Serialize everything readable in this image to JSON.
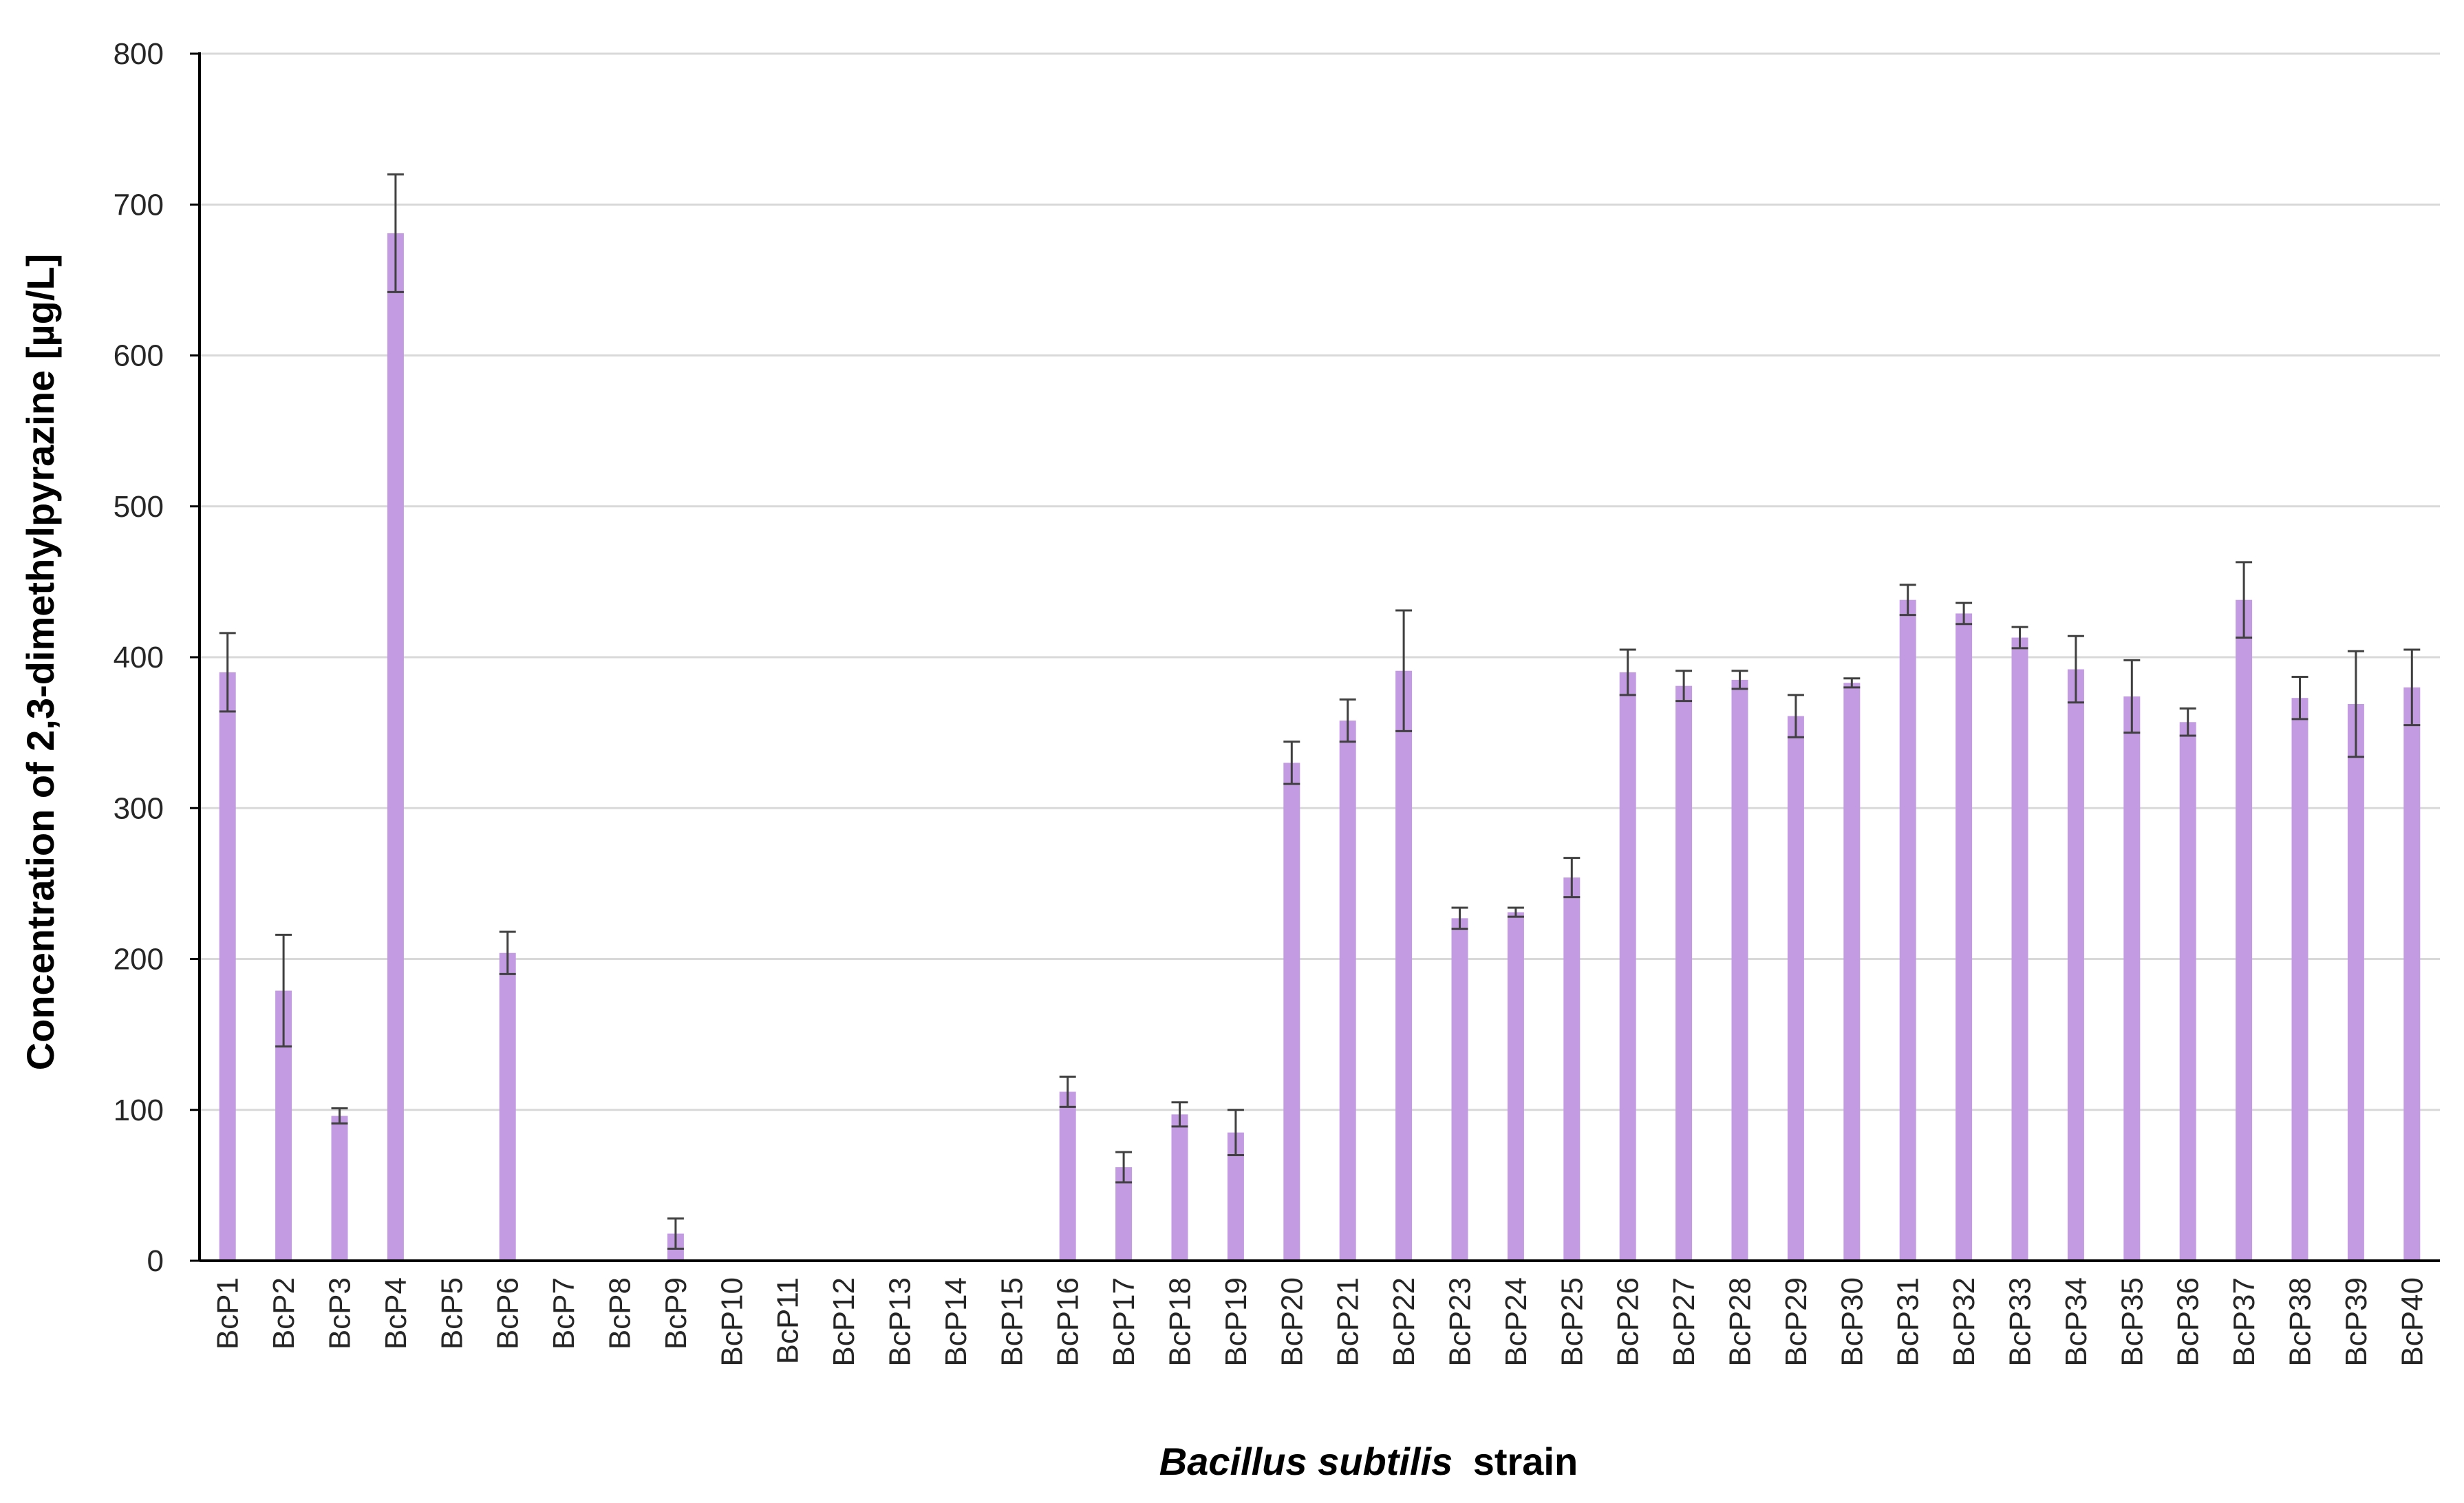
{
  "colors": {
    "bar": "#c39be3",
    "error_bar": "#404040",
    "grid": "#d9d9d9",
    "axis": "#000000",
    "text": "#262626"
  },
  "chart_data": {
    "type": "bar",
    "title": "",
    "ylabel": "Concentration of 2,3-dimethylpyrazine [µg/L]",
    "xlabel": {
      "italic": "Bacillus subtilis",
      "normal": "strain"
    },
    "ylim": [
      0,
      800
    ],
    "yticks": [
      "0",
      "100",
      "200",
      "300",
      "400",
      "500",
      "600",
      "700",
      "800"
    ],
    "grid": "horizontal",
    "legend": "none",
    "categories": [
      "BcP1",
      "BcP2",
      "BcP3",
      "BcP4",
      "BcP5",
      "BcP6",
      "BcP7",
      "BcP8",
      "BcP9",
      "BcP10",
      "BcP11",
      "BcP12",
      "BcP13",
      "BcP14",
      "BcP15",
      "BcP16",
      "BcP17",
      "BcP18",
      "BcP19",
      "BcP20",
      "BcP21",
      "BcP22",
      "BcP23",
      "BcP24",
      "BcP25",
      "BcP26",
      "BcP27",
      "BcP28",
      "BcP29",
      "BcP30",
      "BcP31",
      "BcP32",
      "BcP33",
      "BcP34",
      "BcP35",
      "BcP36",
      "BcP37",
      "BcP38",
      "BcP39",
      "BcP40"
    ],
    "values": [
      390,
      179,
      96,
      681,
      0,
      204,
      0,
      0,
      18,
      0,
      0,
      0,
      0,
      0,
      0,
      112,
      62,
      97,
      85,
      330,
      358,
      391,
      227,
      231,
      254,
      390,
      381,
      385,
      361,
      383,
      438,
      429,
      413,
      392,
      374,
      357,
      438,
      373,
      369,
      380
    ],
    "errors": [
      26,
      37,
      5,
      39,
      0,
      14,
      0,
      0,
      10,
      0,
      0,
      0,
      0,
      0,
      0,
      10,
      10,
      8,
      15,
      14,
      14,
      40,
      7,
      3,
      13,
      15,
      10,
      6,
      14,
      3,
      10,
      7,
      7,
      22,
      24,
      9,
      25,
      14,
      35,
      25
    ]
  }
}
